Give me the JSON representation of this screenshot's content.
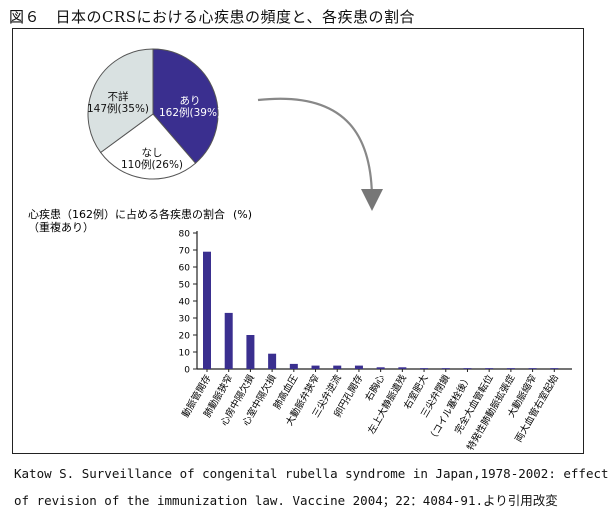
{
  "figure_title": "図６　日本のCRSにおける心疾患の頻度と、各疾患の割合",
  "caption": {
    "line1": "Katow S. Surveillance of congenital rubella syndrome in Japan,1978-2002: effect",
    "line2": "of revision of the immunization law. Vaccine 2004；22：4084-91.より引用改変"
  },
  "chart_data": [
    {
      "type": "pie",
      "slices": [
        {
          "name": "あり",
          "label": "162例(39%)",
          "value": 162,
          "percent": 39,
          "color": "#3a2f8f"
        },
        {
          "name": "なし",
          "label": "110例(26%)",
          "value": 110,
          "percent": 26,
          "color": "#ffffff"
        },
        {
          "name": "不詳",
          "label": "147例(35%)",
          "value": 147,
          "percent": 35,
          "color": "#d9e1e1"
        }
      ]
    },
    {
      "type": "bar",
      "title": "心疾患（162例）に占める各疾患の割合",
      "subtitle": "（重複あり）",
      "yunit": "(%)",
      "ylim": [
        0,
        80
      ],
      "yticks": [
        0,
        10,
        20,
        30,
        40,
        50,
        60,
        70,
        80
      ],
      "bar_color": "#3a2f8f",
      "categories": [
        "動脈管開存",
        "肺動脈狭窄",
        "心房中隔欠損",
        "心室中隔欠損",
        "肺高血圧",
        "大動脈弁狭窄",
        "三尖弁逆流",
        "卵円孔開存",
        "右胸心",
        "左上大静脈遺残",
        "右室肥大",
        "三尖弁閉鎖",
        "（コイル塞栓後）",
        "完全大血管転位",
        "特発性肺動脈拡張症",
        "大動脈縮窄",
        "両大血管右室起始"
      ],
      "values": [
        69,
        33,
        20,
        9,
        3,
        2,
        2,
        2,
        1,
        1,
        0.5,
        0.5,
        0.5,
        0.5,
        0.5,
        0.5,
        0.5
      ]
    }
  ]
}
